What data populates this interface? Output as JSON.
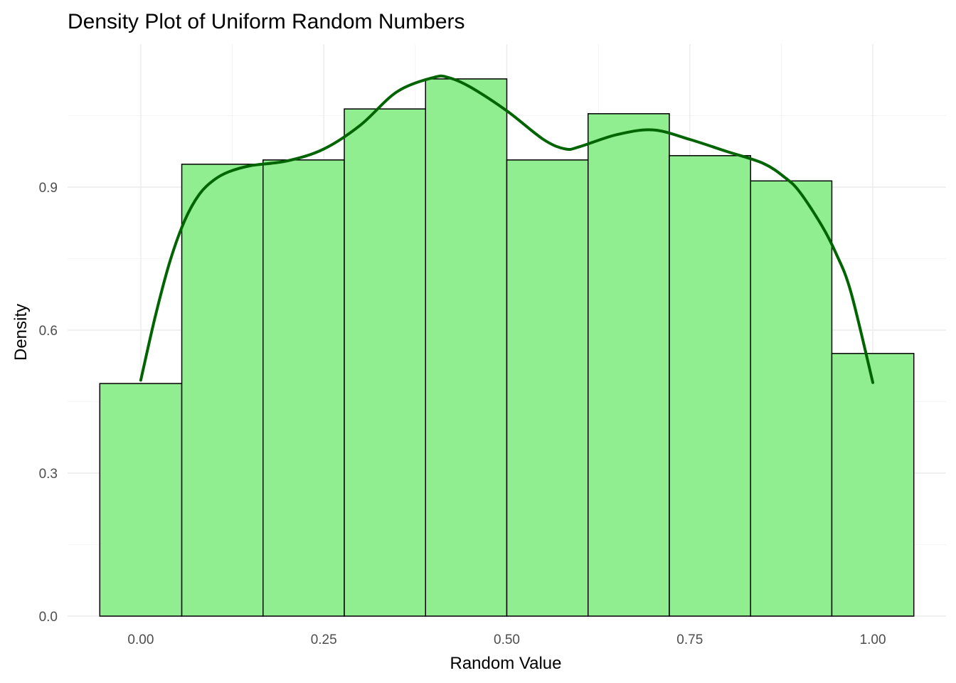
{
  "chart_data": {
    "type": "bar",
    "subtype": "histogram_with_density",
    "title": "Density Plot of Uniform Random Numbers",
    "xlabel": "Random Value",
    "ylabel": "Density",
    "xlim": [
      -0.1,
      1.1
    ],
    "ylim": [
      0,
      1.2
    ],
    "x_ticks": [
      0.0,
      0.25,
      0.5,
      0.75,
      1.0
    ],
    "x_tick_labels": [
      "0.00",
      "0.25",
      "0.50",
      "0.75",
      "1.00"
    ],
    "y_ticks": [
      0.0,
      0.3,
      0.6,
      0.9
    ],
    "y_tick_labels": [
      "0.0",
      "0.3",
      "0.6",
      "0.9"
    ],
    "grid": true,
    "legend": "none",
    "bins": [
      {
        "x0": -0.056,
        "x1": 0.056,
        "value": 0.488
      },
      {
        "x0": 0.056,
        "x1": 0.167,
        "value": 0.948
      },
      {
        "x0": 0.167,
        "x1": 0.278,
        "value": 0.957
      },
      {
        "x0": 0.278,
        "x1": 0.389,
        "value": 1.064
      },
      {
        "x0": 0.389,
        "x1": 0.5,
        "value": 1.127
      },
      {
        "x0": 0.5,
        "x1": 0.611,
        "value": 0.957
      },
      {
        "x0": 0.611,
        "x1": 0.722,
        "value": 1.054
      },
      {
        "x0": 0.722,
        "x1": 0.833,
        "value": 0.966
      },
      {
        "x0": 0.833,
        "x1": 0.944,
        "value": 0.913
      },
      {
        "x0": 0.944,
        "x1": 1.056,
        "value": 0.551
      }
    ],
    "density_curve": {
      "x": [
        0.0,
        0.02,
        0.04,
        0.06,
        0.08,
        0.1,
        0.12,
        0.15,
        0.2,
        0.25,
        0.3,
        0.35,
        0.4,
        0.42,
        0.45,
        0.5,
        0.55,
        0.58,
        0.6,
        0.65,
        0.7,
        0.75,
        0.8,
        0.85,
        0.88,
        0.9,
        0.93,
        0.95,
        0.97,
        1.0
      ],
      "y": [
        0.495,
        0.63,
        0.745,
        0.83,
        0.885,
        0.915,
        0.932,
        0.945,
        0.955,
        0.98,
        1.03,
        1.1,
        1.13,
        1.13,
        1.11,
        1.06,
        1.0,
        0.98,
        0.985,
        1.01,
        1.02,
        1.0,
        0.975,
        0.95,
        0.92,
        0.89,
        0.82,
        0.76,
        0.68,
        0.49
      ]
    },
    "colors": {
      "bar_fill": "#90ee90",
      "bar_outline": "#000000",
      "density_line": "#006400"
    }
  }
}
